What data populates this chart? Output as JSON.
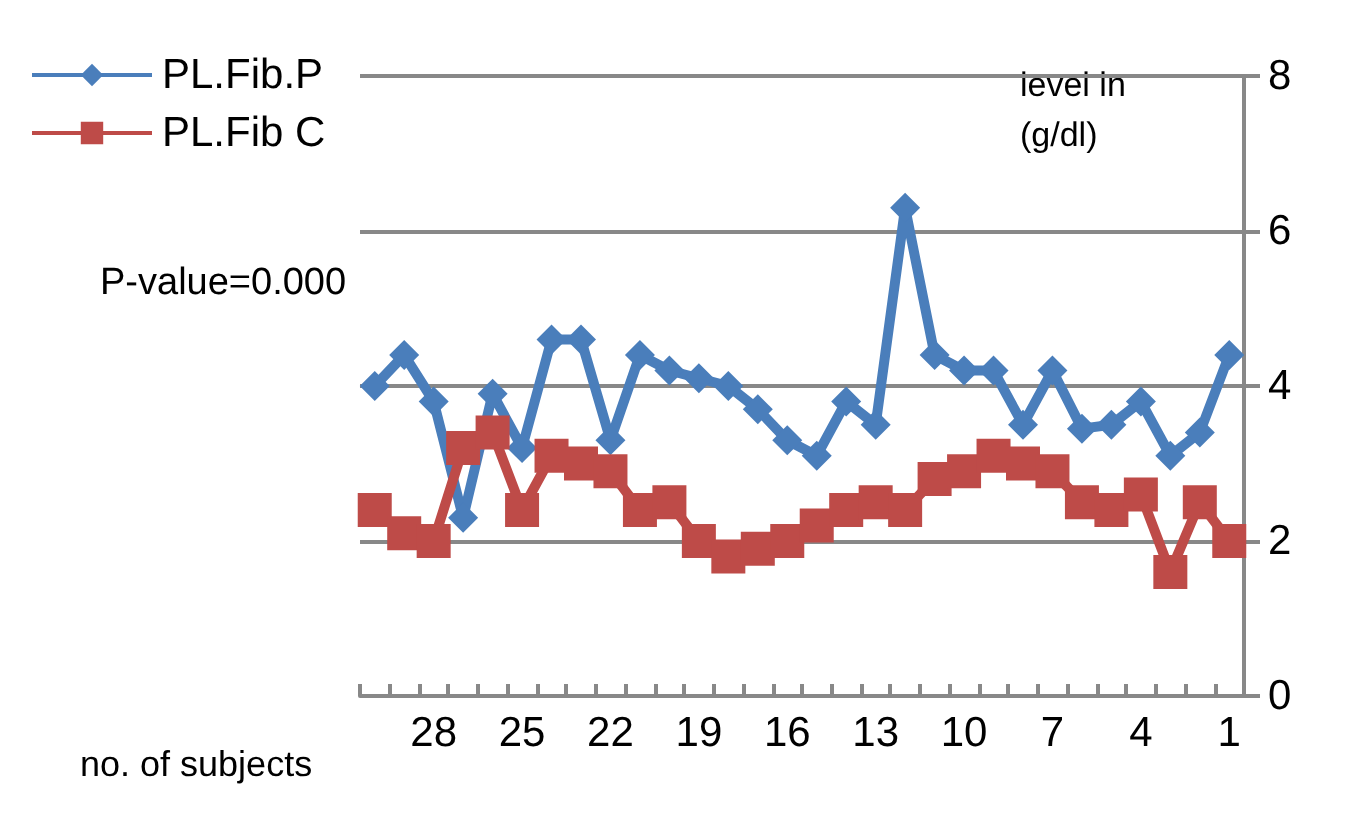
{
  "chart_data": {
    "type": "line",
    "xlabel": "no. of subjects",
    "ylabel": "level in (g/dl)",
    "annotations": [
      "P-value=0.000"
    ],
    "categories": [
      null,
      null,
      "28",
      null,
      null,
      "25",
      null,
      null,
      "22",
      null,
      null,
      "19",
      null,
      null,
      "16",
      null,
      null,
      "13",
      null,
      null,
      "10",
      null,
      null,
      "7",
      null,
      null,
      "4",
      null,
      null,
      "1"
    ],
    "series": [
      {
        "name": "PL.Fib.P",
        "color": "#4a7ebb",
        "marker": "diamond",
        "values": [
          4.0,
          4.4,
          3.8,
          2.3,
          3.9,
          3.2,
          4.6,
          4.6,
          3.3,
          4.4,
          4.2,
          4.1,
          4.0,
          3.7,
          3.3,
          3.1,
          3.8,
          3.5,
          6.3,
          4.4,
          4.2,
          4.2,
          3.5,
          4.2,
          3.45,
          3.5,
          3.8,
          3.1,
          3.4,
          4.4
        ]
      },
      {
        "name": "PL.Fib C",
        "color": "#be4b48",
        "marker": "square",
        "values": [
          2.4,
          2.1,
          2.0,
          3.2,
          3.4,
          2.4,
          3.1,
          3.0,
          2.9,
          2.4,
          2.5,
          2.0,
          1.8,
          1.9,
          2.0,
          2.2,
          2.4,
          2.5,
          2.4,
          2.8,
          2.9,
          3.1,
          3.0,
          2.9,
          2.5,
          2.4,
          2.6,
          1.6,
          2.5,
          2.0
        ]
      }
    ],
    "ylim": [
      0,
      8
    ],
    "yticks": [
      0,
      2,
      4,
      6,
      8
    ],
    "grid": "y",
    "legend": "top left"
  }
}
